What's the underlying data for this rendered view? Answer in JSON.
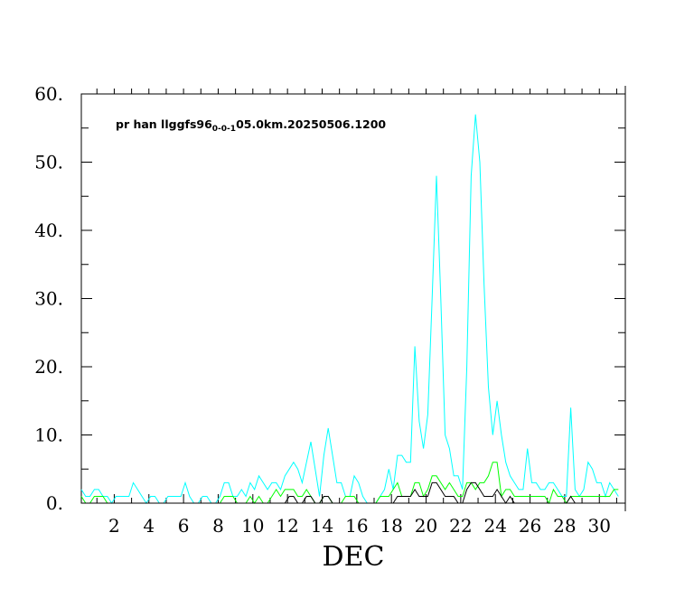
{
  "chart_data": {
    "type": "line",
    "title": {
      "main": "pr han llggfs96",
      "subscript": "0-0-1",
      "suffix": "05.0km.20250506.1200"
    },
    "xlabel": "DEC",
    "ylabel": "",
    "xlim": [
      0.1,
      31.5
    ],
    "ylim": [
      0,
      60
    ],
    "y_ticks": [
      0,
      10,
      20,
      30,
      40,
      50,
      60
    ],
    "y_tick_labels": [
      "0.",
      "10.",
      "20.",
      "30.",
      "40.",
      "50.",
      "60."
    ],
    "x_tick_labels": [
      "2",
      "4",
      "6",
      "8",
      "10",
      "12",
      "14",
      "16",
      "18",
      "20",
      "22",
      "24",
      "26",
      "28",
      "30"
    ],
    "x_tick_values": [
      2,
      4,
      6,
      8,
      10,
      12,
      14,
      16,
      18,
      20,
      22,
      24,
      26,
      28,
      30
    ],
    "x_start": 0.1,
    "x_step": 0.25,
    "series": [
      {
        "name": "cyan",
        "color": "#00ffff",
        "values": [
          2,
          1,
          1,
          2,
          2,
          1,
          1,
          0,
          1,
          1,
          1,
          1,
          3,
          2,
          1,
          0,
          1,
          1,
          0,
          0,
          1,
          1,
          1,
          1,
          3,
          1,
          0,
          0,
          1,
          1,
          0,
          0,
          1,
          3,
          3,
          1,
          1,
          2,
          1,
          3,
          2,
          4,
          3,
          2,
          3,
          3,
          2,
          4,
          5,
          6,
          5,
          3,
          6,
          9,
          5,
          1,
          7,
          11,
          7,
          3,
          3,
          1,
          1,
          4,
          3,
          1,
          0,
          0,
          0,
          1,
          2,
          5,
          2,
          7,
          7,
          6,
          6,
          23,
          12,
          8,
          13,
          30,
          48,
          30,
          10,
          8,
          4,
          4,
          2,
          20,
          48,
          57,
          50,
          32,
          17,
          10,
          15,
          10,
          6,
          4,
          3,
          2,
          2,
          8,
          3,
          3,
          2,
          2,
          3,
          3,
          2,
          1,
          1,
          14,
          2,
          1,
          2,
          6,
          5,
          3,
          3,
          1,
          3,
          2,
          1
        ]
      },
      {
        "name": "green",
        "color": "#00ff00",
        "values": [
          1,
          0,
          0,
          1,
          1,
          1,
          0,
          0,
          0,
          0,
          0,
          0,
          0,
          0,
          0,
          0,
          0,
          0,
          0,
          0,
          0,
          0,
          0,
          0,
          0,
          0,
          0,
          0,
          0,
          0,
          0,
          0,
          0,
          1,
          1,
          1,
          0,
          0,
          0,
          1,
          0,
          1,
          0,
          0,
          1,
          2,
          1,
          2,
          2,
          2,
          1,
          1,
          2,
          1,
          0,
          0,
          1,
          1,
          0,
          0,
          0,
          1,
          1,
          1,
          0,
          0,
          0,
          0,
          0,
          1,
          1,
          1,
          2,
          3,
          1,
          1,
          1,
          3,
          3,
          1,
          2,
          4,
          4,
          3,
          2,
          3,
          2,
          1,
          1,
          3,
          3,
          2,
          3,
          3,
          4,
          6,
          6,
          1,
          2,
          2,
          1,
          1,
          1,
          1,
          1,
          1,
          1,
          1,
          0,
          2,
          1,
          1,
          0,
          1,
          1,
          1,
          1,
          1,
          1,
          1,
          1,
          1,
          1,
          2,
          2
        ]
      },
      {
        "name": "black",
        "color": "#000000",
        "values": [
          0,
          0,
          0,
          0,
          0,
          0,
          0,
          0,
          0,
          0,
          0,
          0,
          0,
          0,
          0,
          0,
          0,
          0,
          0,
          0,
          0,
          0,
          0,
          0,
          0,
          0,
          0,
          0,
          0,
          0,
          0,
          0,
          0,
          0,
          0,
          0,
          0,
          0,
          0,
          0,
          0,
          0,
          0,
          0,
          0,
          0,
          0,
          0,
          1,
          1,
          0,
          0,
          1,
          1,
          0,
          0,
          1,
          1,
          0,
          0,
          0,
          0,
          0,
          0,
          0,
          0,
          0,
          0,
          0,
          0,
          0,
          0,
          0,
          1,
          1,
          1,
          1,
          2,
          1,
          1,
          1,
          3,
          3,
          2,
          1,
          1,
          1,
          0,
          0,
          2,
          3,
          3,
          2,
          1,
          1,
          1,
          2,
          1,
          0,
          1,
          0,
          0,
          0,
          0,
          0,
          0,
          0,
          0,
          0,
          0,
          0,
          0,
          0,
          1,
          0,
          0,
          0,
          0,
          0,
          0,
          0,
          0,
          0,
          0,
          0
        ]
      }
    ]
  }
}
